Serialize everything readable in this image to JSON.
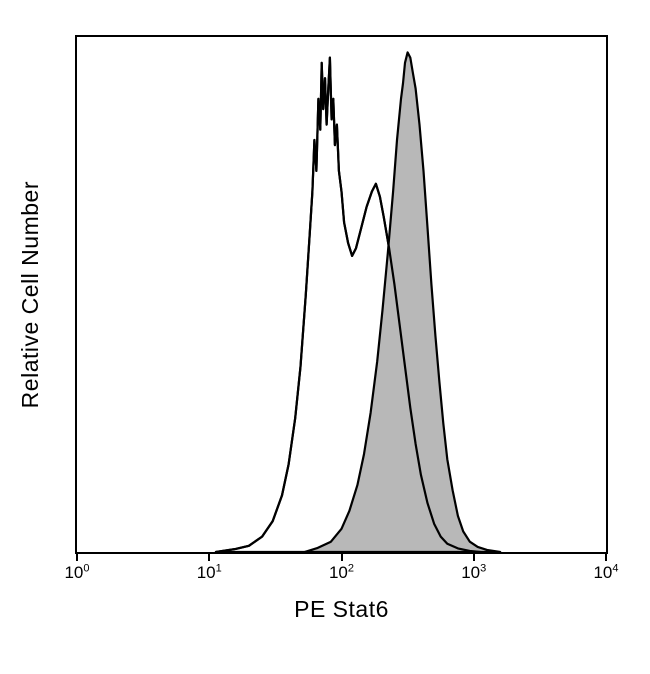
{
  "figure": {
    "background": "#ffffff",
    "frame_color": "#000000",
    "x_axis": {
      "label": "PE Stat6",
      "scale": "log10",
      "ticks": [
        {
          "base": "10",
          "exp": "0",
          "log": 0
        },
        {
          "base": "10",
          "exp": "1",
          "log": 1
        },
        {
          "base": "10",
          "exp": "2",
          "log": 2
        },
        {
          "base": "10",
          "exp": "3",
          "log": 3
        },
        {
          "base": "10",
          "exp": "4",
          "log": 4
        }
      ]
    },
    "y_axis": {
      "label": "Relative Cell Number",
      "ticks": []
    }
  },
  "chart_data": {
    "type": "area",
    "subtype": "flow-cytometry-histogram-overlay",
    "title": "",
    "xlabel": "PE Stat6",
    "ylabel": "Relative Cell Number",
    "x_scale": "log10",
    "xlim_log": [
      0,
      4
    ],
    "ylim": [
      0,
      1
    ],
    "grid": false,
    "legend": "none",
    "series": [
      {
        "name": "open-histogram",
        "description": "unshaded control population, outline only",
        "fill": "#ffffff",
        "stroke": "#000000",
        "stroke_width": 2.2,
        "points": [
          [
            1.05,
            0.0
          ],
          [
            1.2,
            0.006
          ],
          [
            1.3,
            0.012
          ],
          [
            1.4,
            0.03
          ],
          [
            1.48,
            0.06
          ],
          [
            1.55,
            0.11
          ],
          [
            1.6,
            0.17
          ],
          [
            1.65,
            0.26
          ],
          [
            1.69,
            0.36
          ],
          [
            1.73,
            0.5
          ],
          [
            1.76,
            0.62
          ],
          [
            1.78,
            0.7
          ],
          [
            1.795,
            0.8
          ],
          [
            1.81,
            0.74
          ],
          [
            1.825,
            0.88
          ],
          [
            1.84,
            0.82
          ],
          [
            1.85,
            0.95
          ],
          [
            1.862,
            0.86
          ],
          [
            1.875,
            0.92
          ],
          [
            1.887,
            0.83
          ],
          [
            1.9,
            0.9
          ],
          [
            1.912,
            0.96
          ],
          [
            1.925,
            0.84
          ],
          [
            1.938,
            0.88
          ],
          [
            1.95,
            0.79
          ],
          [
            1.965,
            0.83
          ],
          [
            1.98,
            0.74
          ],
          [
            2.0,
            0.7
          ],
          [
            2.02,
            0.64
          ],
          [
            2.05,
            0.6
          ],
          [
            2.08,
            0.575
          ],
          [
            2.11,
            0.59
          ],
          [
            2.15,
            0.63
          ],
          [
            2.19,
            0.67
          ],
          [
            2.23,
            0.7
          ],
          [
            2.26,
            0.715
          ],
          [
            2.29,
            0.69
          ],
          [
            2.32,
            0.65
          ],
          [
            2.36,
            0.59
          ],
          [
            2.4,
            0.52
          ],
          [
            2.44,
            0.44
          ],
          [
            2.48,
            0.36
          ],
          [
            2.52,
            0.28
          ],
          [
            2.56,
            0.21
          ],
          [
            2.6,
            0.15
          ],
          [
            2.65,
            0.095
          ],
          [
            2.7,
            0.055
          ],
          [
            2.75,
            0.03
          ],
          [
            2.8,
            0.016
          ],
          [
            2.88,
            0.007
          ],
          [
            2.97,
            0.002
          ],
          [
            3.05,
            0.0
          ]
        ]
      },
      {
        "name": "filled-histogram",
        "description": "gray shaded stained population",
        "fill": "#b8b8b8",
        "stroke": "#000000",
        "stroke_width": 2.2,
        "points": [
          [
            1.72,
            0.0
          ],
          [
            1.82,
            0.008
          ],
          [
            1.92,
            0.02
          ],
          [
            2.0,
            0.045
          ],
          [
            2.06,
            0.08
          ],
          [
            2.12,
            0.13
          ],
          [
            2.17,
            0.19
          ],
          [
            2.22,
            0.27
          ],
          [
            2.27,
            0.37
          ],
          [
            2.31,
            0.47
          ],
          [
            2.35,
            0.58
          ],
          [
            2.39,
            0.7
          ],
          [
            2.42,
            0.8
          ],
          [
            2.45,
            0.88
          ],
          [
            2.465,
            0.91
          ],
          [
            2.48,
            0.95
          ],
          [
            2.5,
            0.97
          ],
          [
            2.52,
            0.96
          ],
          [
            2.54,
            0.93
          ],
          [
            2.56,
            0.9
          ],
          [
            2.59,
            0.83
          ],
          [
            2.62,
            0.74
          ],
          [
            2.65,
            0.63
          ],
          [
            2.68,
            0.52
          ],
          [
            2.71,
            0.42
          ],
          [
            2.74,
            0.33
          ],
          [
            2.77,
            0.25
          ],
          [
            2.8,
            0.18
          ],
          [
            2.84,
            0.12
          ],
          [
            2.88,
            0.07
          ],
          [
            2.92,
            0.04
          ],
          [
            2.97,
            0.02
          ],
          [
            3.03,
            0.01
          ],
          [
            3.1,
            0.004
          ],
          [
            3.2,
            0.0
          ]
        ]
      }
    ]
  }
}
